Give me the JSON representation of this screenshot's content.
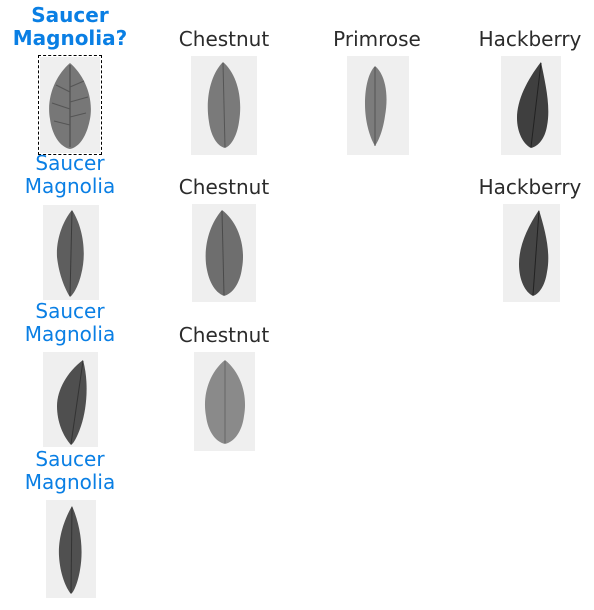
{
  "query": {
    "label": "Saucer\nMagnolia?"
  },
  "results": {
    "col1": [
      {
        "label": "Saucer\nMagnolia"
      },
      {
        "label": "Saucer\nMagnolia"
      },
      {
        "label": "Saucer\nMagnolia"
      }
    ],
    "col2": [
      {
        "label": "Chestnut"
      },
      {
        "label": "Chestnut"
      },
      {
        "label": "Chestnut"
      }
    ],
    "col3": [
      {
        "label": "Primrose"
      }
    ],
    "col4": [
      {
        "label": "Hackberry"
      },
      {
        "label": "Hackberry"
      }
    ]
  },
  "colors": {
    "accent_blue": "#0a7fe4",
    "text_dark": "#2b2b2b",
    "thumb_bg": "#efefef"
  }
}
